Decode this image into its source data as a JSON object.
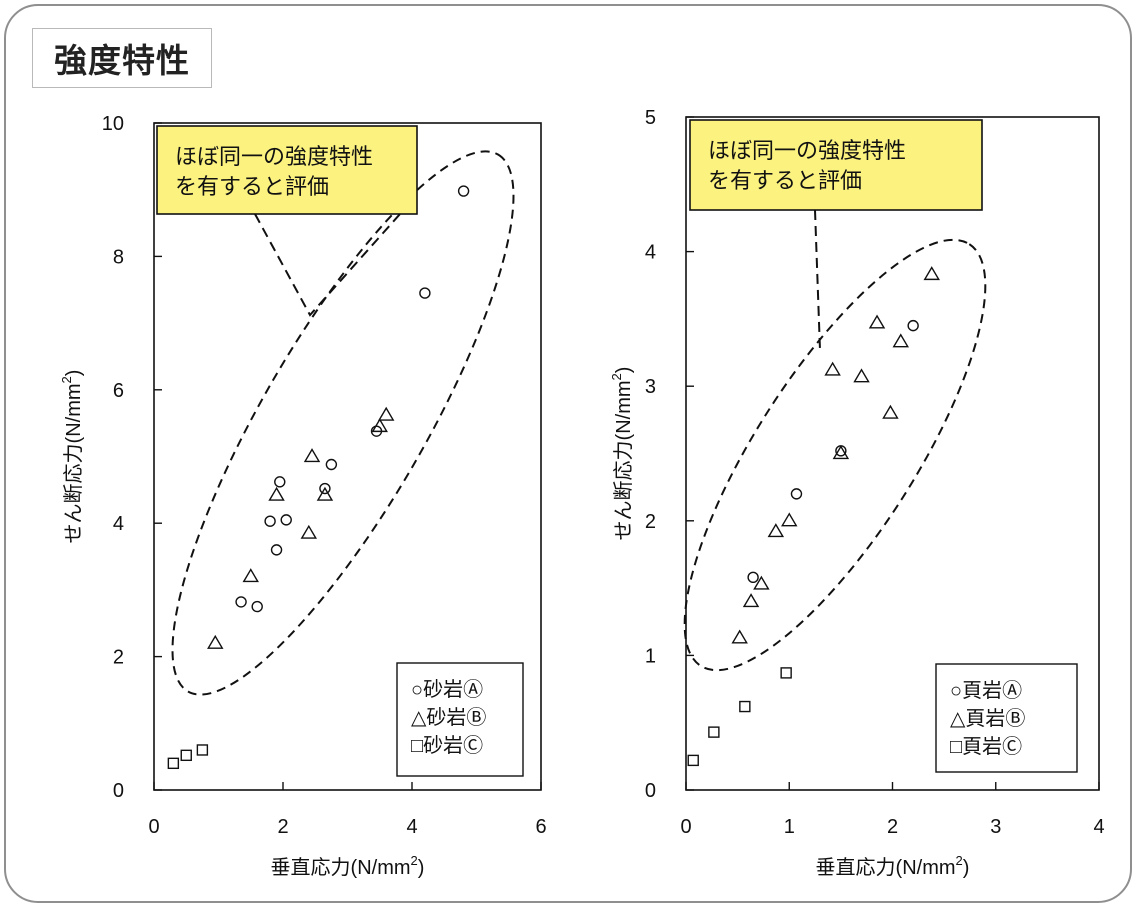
{
  "page": {
    "title": "強度特性"
  },
  "chart_data": [
    {
      "type": "scatter",
      "xlabel": "垂直応力(N/mm",
      "xlabel_sup": "2",
      "xlabel_close": ")",
      "ylabel": "せん断応力(N/mm",
      "ylabel_sup": "2",
      "ylabel_close": ")",
      "xlim": [
        0,
        6
      ],
      "ylim": [
        0,
        10
      ],
      "xticks": [
        0,
        2,
        4,
        6
      ],
      "yticks": [
        0,
        2,
        4,
        6,
        8,
        10
      ],
      "legend_position": "bottom-right",
      "annotation": {
        "lines": [
          "ほぼ同一の強度特性",
          "を有すると評価"
        ],
        "fill": "#fbf280"
      },
      "series": [
        {
          "name": "○砂岩Ⓐ",
          "marker": "circle",
          "points": [
            [
              1.35,
              2.82
            ],
            [
              1.6,
              2.75
            ],
            [
              1.8,
              4.03
            ],
            [
              1.9,
              3.6
            ],
            [
              1.95,
              4.62
            ],
            [
              2.05,
              4.05
            ],
            [
              2.65,
              4.52
            ],
            [
              2.75,
              4.88
            ],
            [
              3.45,
              5.38
            ],
            [
              4.2,
              7.45
            ],
            [
              4.8,
              8.98
            ]
          ]
        },
        {
          "name": "△砂岩Ⓑ",
          "marker": "triangle",
          "points": [
            [
              0.95,
              2.2
            ],
            [
              1.5,
              3.2
            ],
            [
              1.9,
              4.42
            ],
            [
              2.4,
              3.85
            ],
            [
              2.45,
              5.0
            ],
            [
              2.65,
              4.42
            ],
            [
              3.5,
              5.45
            ],
            [
              3.6,
              5.62
            ]
          ]
        },
        {
          "name": "□砂岩Ⓒ",
          "marker": "square",
          "points": [
            [
              0.3,
              0.4
            ],
            [
              0.5,
              0.52
            ],
            [
              0.75,
              0.6
            ]
          ]
        }
      ]
    },
    {
      "type": "scatter",
      "xlabel": "垂直応力(N/mm",
      "xlabel_sup": "2",
      "xlabel_close": ")",
      "ylabel": "せん断応力(N/mm",
      "ylabel_sup": "2",
      "ylabel_close": ")",
      "xlim": [
        0,
        4
      ],
      "ylim": [
        0,
        5
      ],
      "xticks": [
        0,
        1,
        2,
        3,
        4
      ],
      "yticks": [
        0,
        1,
        2,
        3,
        4,
        5
      ],
      "legend_position": "bottom-right",
      "annotation": {
        "lines": [
          "ほぼ同一の強度特性",
          "を有すると評価"
        ],
        "fill": "#fbf280"
      },
      "series": [
        {
          "name": "○頁岩Ⓐ",
          "marker": "circle",
          "points": [
            [
              0.65,
              1.58
            ],
            [
              1.07,
              2.2
            ],
            [
              1.5,
              2.52
            ],
            [
              2.2,
              3.45
            ]
          ]
        },
        {
          "name": "△頁岩Ⓑ",
          "marker": "triangle",
          "points": [
            [
              0.52,
              1.13
            ],
            [
              0.63,
              1.4
            ],
            [
              0.73,
              1.53
            ],
            [
              0.87,
              1.92
            ],
            [
              1.0,
              2.0
            ],
            [
              1.42,
              3.12
            ],
            [
              1.5,
              2.5
            ],
            [
              1.7,
              3.07
            ],
            [
              1.85,
              3.47
            ],
            [
              1.98,
              2.8
            ],
            [
              2.08,
              3.33
            ],
            [
              2.38,
              3.83
            ]
          ]
        },
        {
          "name": "□頁岩Ⓒ",
          "marker": "square",
          "points": [
            [
              0.07,
              0.22
            ],
            [
              0.27,
              0.43
            ],
            [
              0.57,
              0.62
            ],
            [
              0.97,
              0.87
            ]
          ]
        }
      ]
    }
  ]
}
